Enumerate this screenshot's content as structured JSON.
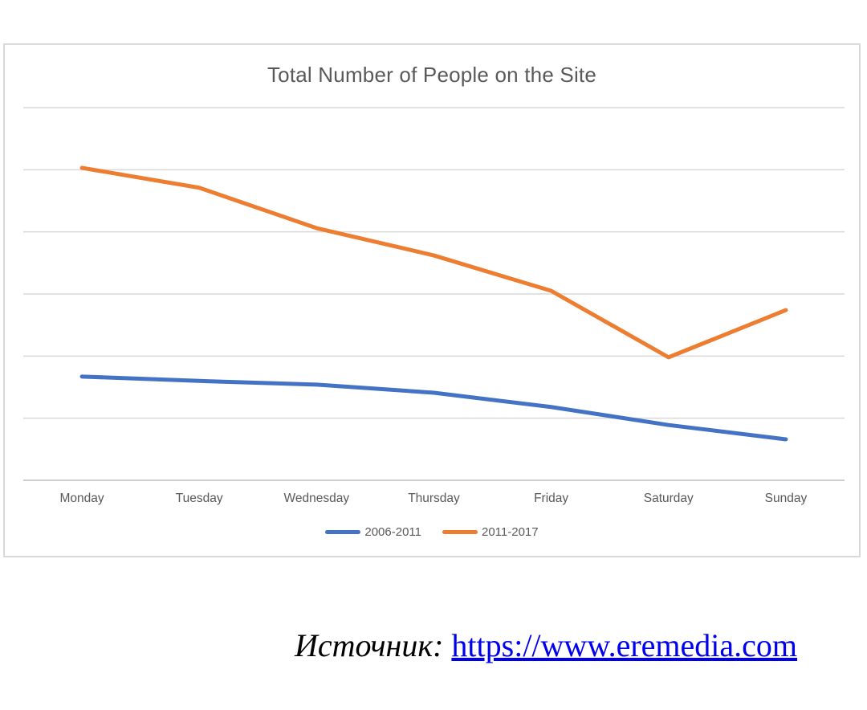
{
  "chart_data": {
    "type": "line",
    "title": "Total Number of People on the Site",
    "categories": [
      "Monday",
      "Tuesday",
      "Wednesday",
      "Thursday",
      "Friday",
      "Saturday",
      "Sunday"
    ],
    "series": [
      {
        "name": "2006-2011",
        "color": "#4472C4",
        "values": [
          1.67,
          1.6,
          1.54,
          1.41,
          1.18,
          0.89,
          0.66
        ]
      },
      {
        "name": "2011-2017",
        "color": "#ED7D31",
        "values": [
          5.03,
          4.71,
          4.06,
          3.62,
          3.05,
          1.98,
          2.74
        ]
      }
    ],
    "ylim": [
      0,
      6
    ],
    "y_tick_labels": [],
    "grid": true,
    "gridline_color": "#d9d9d9",
    "axis_line_color": "#bfbfbf",
    "title_color": "#595959",
    "label_color": "#595959",
    "legend_position": "bottom"
  },
  "source": {
    "label": "Источник:",
    "url_text": "https://www.eremedia.com",
    "link_color": "#0000EE"
  }
}
